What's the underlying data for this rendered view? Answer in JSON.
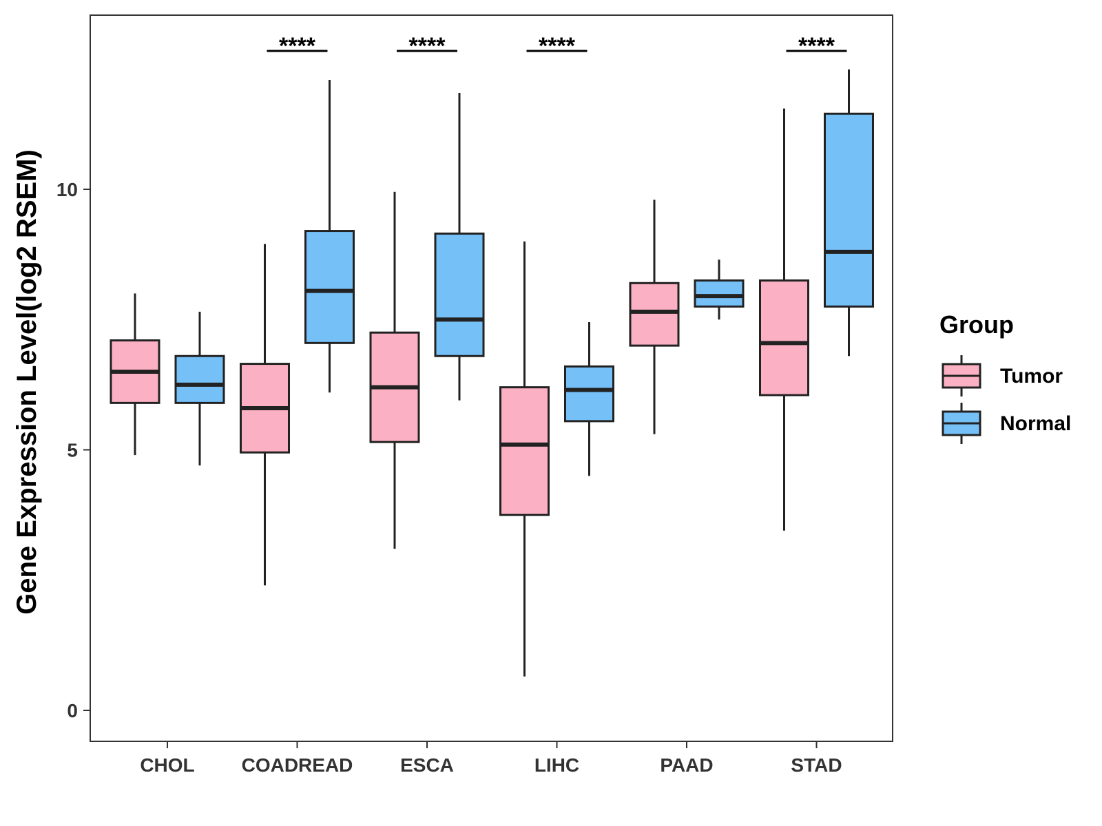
{
  "chart_data": {
    "type": "box",
    "ylabel": "Gene Expression Level(log2 RSEM)",
    "xlabel": "",
    "ylim": [
      -0.6,
      13.4
    ],
    "yticks": [
      0,
      5,
      10
    ],
    "categories": [
      "CHOL",
      "COADREAD",
      "ESCA",
      "LIHC",
      "PAAD",
      "STAD"
    ],
    "legend": {
      "title": "Group",
      "position": "right",
      "entries": [
        "Tumor",
        "Normal"
      ]
    },
    "colors": {
      "Tumor": "#FBB1C3",
      "Normal": "#76C0F8",
      "stroke": "#222222"
    },
    "series": [
      {
        "name": "Tumor",
        "boxes": [
          {
            "min": 4.9,
            "q1": 5.9,
            "median": 6.5,
            "q3": 7.1,
            "max": 8.0
          },
          {
            "min": 2.4,
            "q1": 4.95,
            "median": 5.8,
            "q3": 6.65,
            "max": 8.95
          },
          {
            "min": 3.1,
            "q1": 5.15,
            "median": 6.2,
            "q3": 7.25,
            "max": 9.95
          },
          {
            "min": 0.65,
            "q1": 3.75,
            "median": 5.1,
            "q3": 6.2,
            "max": 9.0
          },
          {
            "min": 5.3,
            "q1": 7.0,
            "median": 7.65,
            "q3": 8.2,
            "max": 9.8
          },
          {
            "min": 3.45,
            "q1": 6.05,
            "median": 7.05,
            "q3": 8.25,
            "max": 11.55
          }
        ]
      },
      {
        "name": "Normal",
        "boxes": [
          {
            "min": 4.7,
            "q1": 5.9,
            "median": 6.25,
            "q3": 6.8,
            "max": 7.65
          },
          {
            "min": 6.1,
            "q1": 7.05,
            "median": 8.05,
            "q3": 9.2,
            "max": 12.1
          },
          {
            "min": 5.95,
            "q1": 6.8,
            "median": 7.5,
            "q3": 9.15,
            "max": 11.85
          },
          {
            "min": 4.5,
            "q1": 5.55,
            "median": 6.15,
            "q3": 6.6,
            "max": 7.45
          },
          {
            "min": 7.5,
            "q1": 7.75,
            "median": 7.95,
            "q3": 8.25,
            "max": 8.65
          },
          {
            "min": 6.8,
            "q1": 7.75,
            "median": 8.8,
            "q3": 11.45,
            "max": 12.3
          }
        ]
      }
    ],
    "annotations": [
      {
        "category": "COADREAD",
        "label": "****"
      },
      {
        "category": "ESCA",
        "label": "****"
      },
      {
        "category": "LIHC",
        "label": "****"
      },
      {
        "category": "STAD",
        "label": "****"
      }
    ]
  }
}
